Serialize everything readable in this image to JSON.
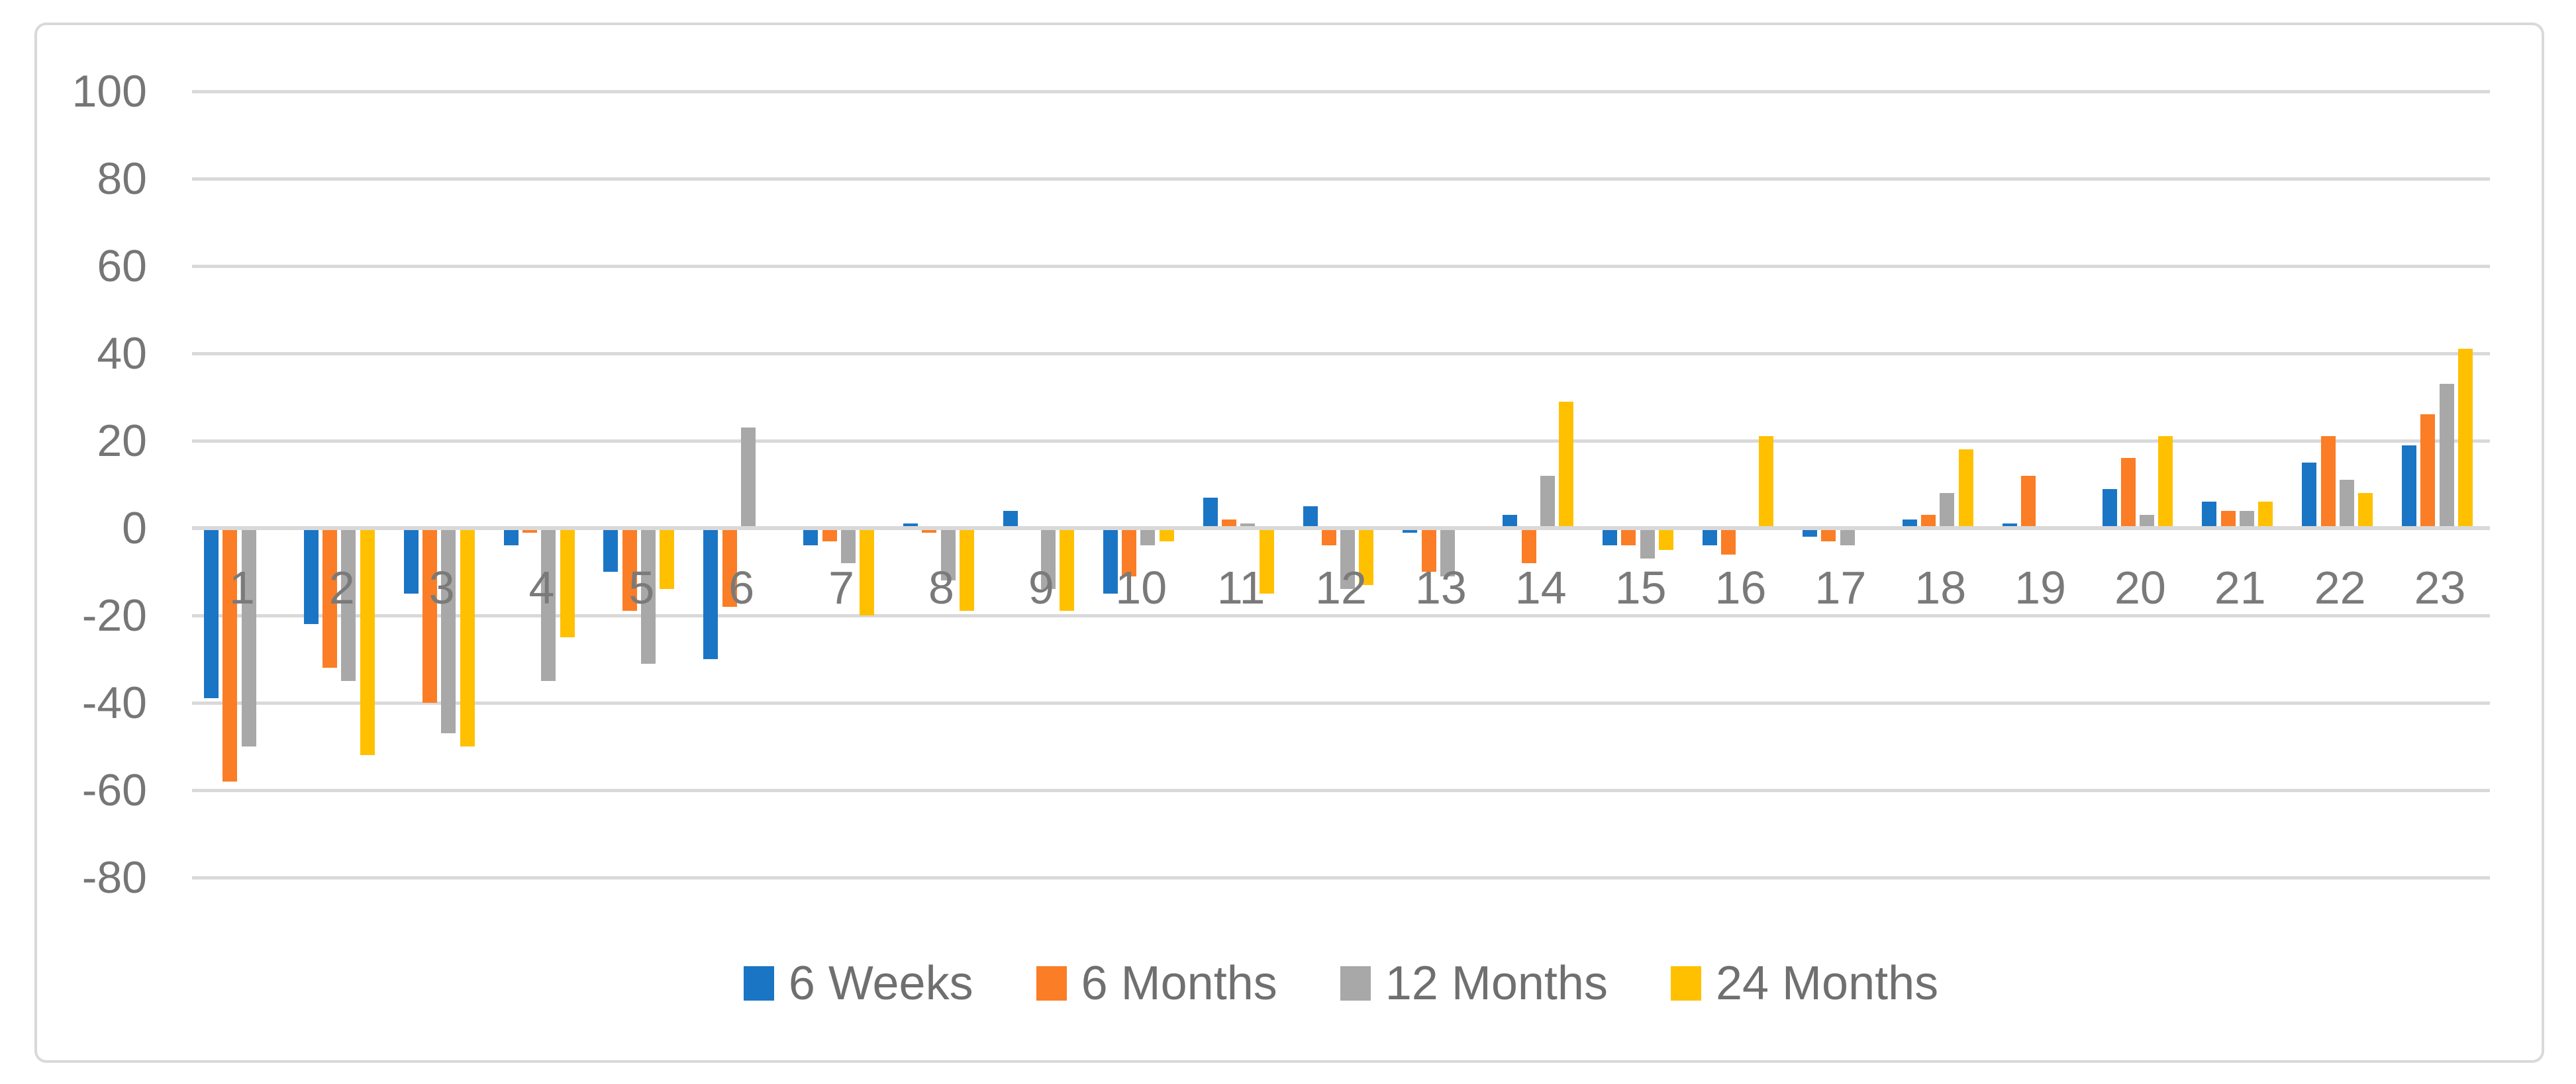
{
  "chart_data": {
    "type": "bar",
    "title": "",
    "xlabel": "",
    "ylabel": "",
    "categories": [
      "1",
      "2",
      "3",
      "4",
      "5",
      "6",
      "7",
      "8",
      "9",
      "10",
      "11",
      "12",
      "13",
      "14",
      "15",
      "16",
      "17",
      "18",
      "19",
      "20",
      "21",
      "22",
      "23"
    ],
    "series": [
      {
        "name": "6 Weeks",
        "color": "#1B75C5",
        "values": [
          -39,
          -22,
          -15,
          -4,
          -10,
          -30,
          -4,
          1,
          4,
          -15,
          7,
          5,
          -1,
          3,
          -4,
          -4,
          -2,
          2,
          1,
          9,
          6,
          15,
          19
        ]
      },
      {
        "name": "6 Months",
        "color": "#FB7D26",
        "values": [
          -58,
          -32,
          -40,
          -1,
          -19,
          -18,
          -3,
          -1,
          0,
          -11,
          2,
          -4,
          -10,
          -8,
          -4,
          -6,
          -3,
          3,
          12,
          16,
          4,
          21,
          26
        ]
      },
      {
        "name": "12 Months",
        "color": "#A8A8A8",
        "values": [
          -50,
          -35,
          -47,
          -35,
          -31,
          23,
          -8,
          -12,
          -14,
          -4,
          1,
          -14,
          -11,
          12,
          -7,
          0,
          -4,
          8,
          0,
          3,
          4,
          11,
          33
        ]
      },
      {
        "name": "24 Months",
        "color": "#FFC000",
        "values": [
          0,
          -52,
          -50,
          -25,
          -14,
          0,
          -20,
          -19,
          -19,
          -3,
          -15,
          -13,
          0,
          29,
          -5,
          21,
          0,
          18,
          0,
          21,
          6,
          8,
          41
        ]
      }
    ],
    "y_axis": {
      "min": -80,
      "max": 100,
      "step": 20,
      "tick_labels": [
        "100",
        "80",
        "60",
        "40",
        "20",
        "0",
        "-20",
        "-40",
        "-60",
        "-80"
      ]
    },
    "grid": true,
    "legend_position": "bottom",
    "note_missing_bars": "zero values are not drawn",
    "colors": {
      "gridline": "#D9D9D9",
      "zero_line": "#D9D9D9",
      "tick_text": "#767676",
      "legend_text": "#6f6f6f",
      "frame_border": "#D9D9D9",
      "background": "#ffffff"
    }
  }
}
